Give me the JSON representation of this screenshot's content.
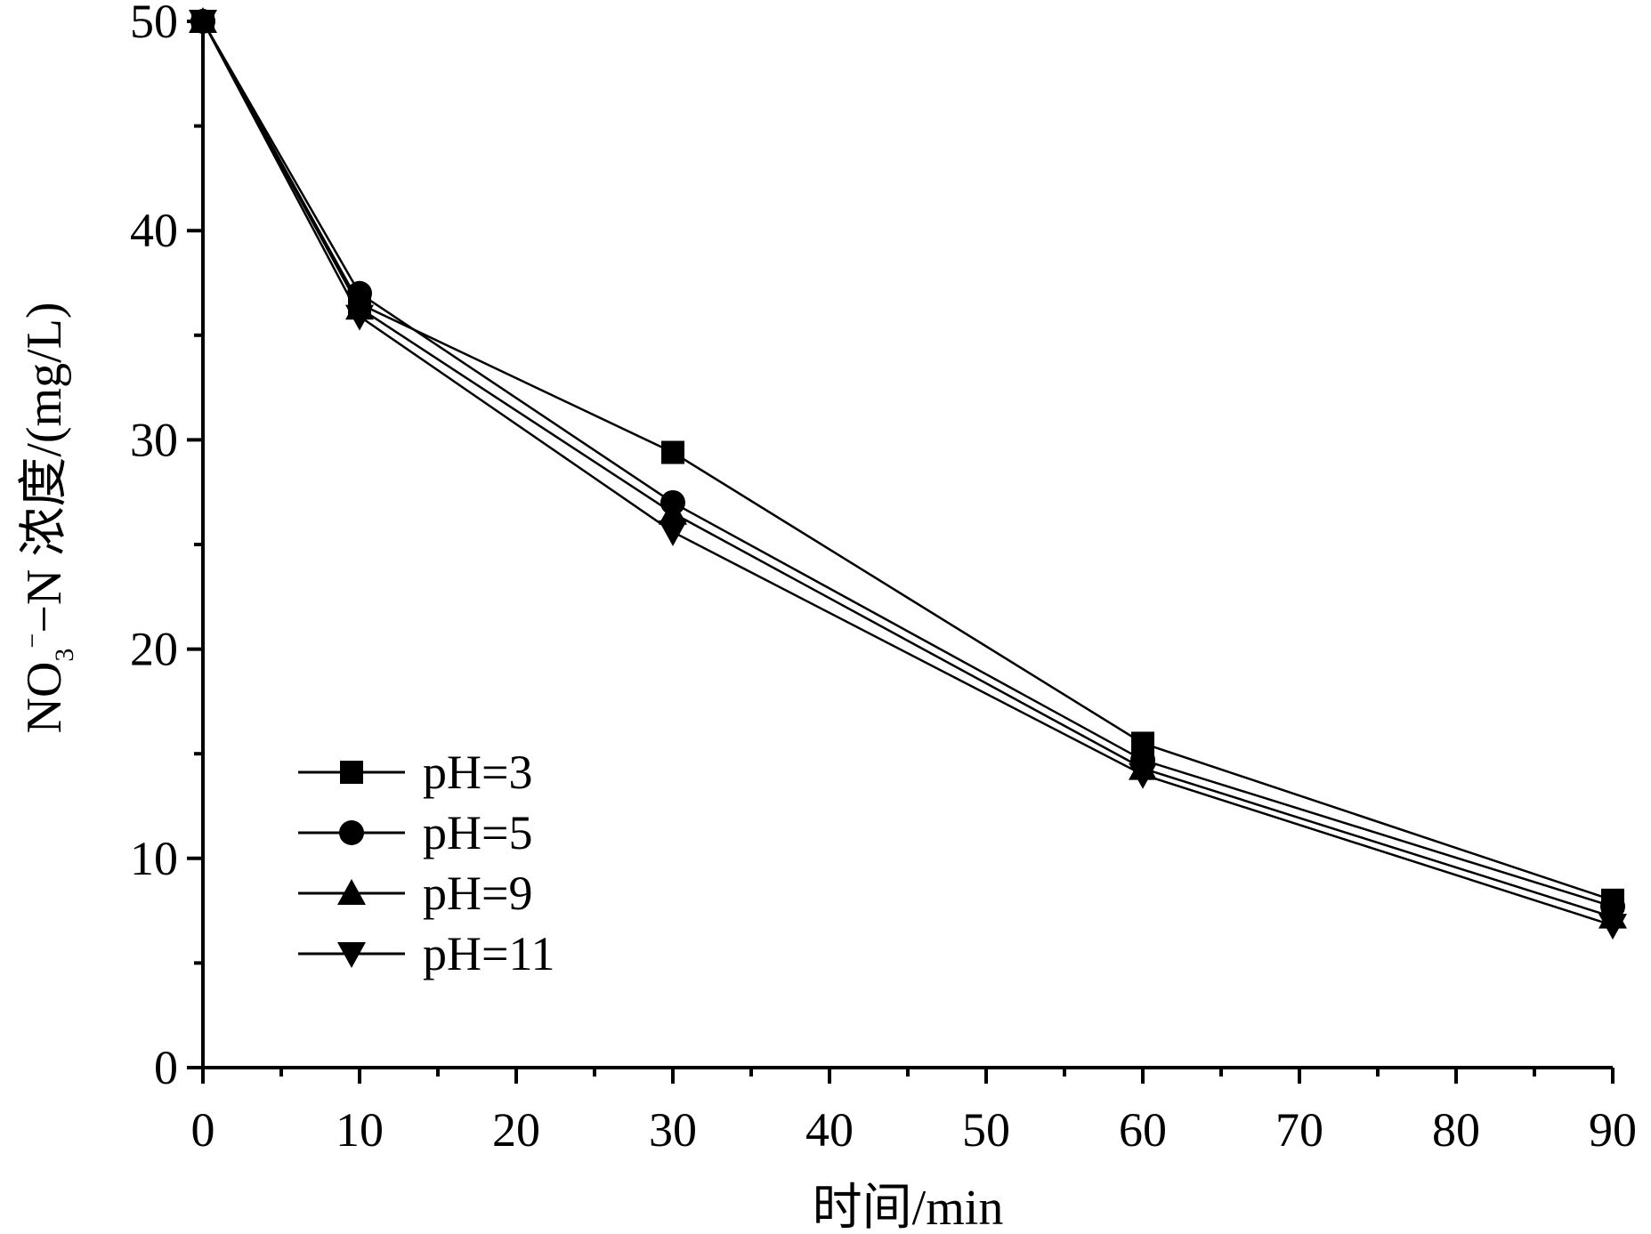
{
  "chart_data": {
    "type": "line",
    "title": "",
    "xlabel": "时间/min",
    "ylabel": {
      "prefix": "NO",
      "sub": "3",
      "sup": "−",
      "suffix": "−N 浓度/(mg/L)"
    },
    "xlim": [
      0,
      90
    ],
    "ylim": [
      0,
      50
    ],
    "xticks": [
      "0",
      "10",
      "20",
      "30",
      "40",
      "50",
      "60",
      "70",
      "80",
      "90"
    ],
    "yticks": [
      "0",
      "10",
      "20",
      "30",
      "40",
      "50"
    ],
    "grid": false,
    "legend_position": "bottom-left",
    "x": [
      0,
      10,
      30,
      60,
      90
    ],
    "series": [
      {
        "name": "pH=3",
        "marker": "square",
        "values": [
          50,
          36.5,
          29.4,
          15.5,
          8.0
        ]
      },
      {
        "name": "pH=5",
        "marker": "circle",
        "values": [
          50,
          37.0,
          27.0,
          14.7,
          7.7
        ]
      },
      {
        "name": "pH=9",
        "marker": "triangle-up",
        "values": [
          50,
          36.3,
          26.5,
          14.3,
          7.2
        ]
      },
      {
        "name": "pH=11",
        "marker": "triangle-down",
        "values": [
          50,
          35.9,
          25.6,
          14.0,
          6.8
        ]
      }
    ],
    "colors": {
      "line": "#000000",
      "marker": "#000000"
    }
  }
}
